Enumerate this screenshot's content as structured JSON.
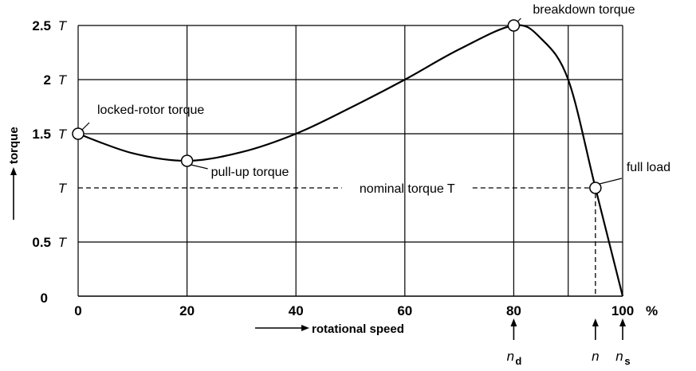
{
  "chart_data": {
    "type": "line",
    "series": [
      {
        "x": [
          0,
          10,
          20,
          30,
          40,
          50,
          60,
          70,
          80,
          85,
          90,
          95,
          100
        ],
        "y": [
          1.5,
          1.32,
          1.25,
          1.33,
          1.5,
          1.74,
          2.0,
          2.28,
          2.5,
          2.38,
          2.0,
          1.0,
          0.0
        ]
      }
    ],
    "xlim": [
      0,
      100
    ],
    "ylim": [
      0,
      2.5
    ],
    "x_ticks": [
      {
        "value": 0,
        "label": "0"
      },
      {
        "value": 20,
        "label": "20"
      },
      {
        "value": 40,
        "label": "40"
      },
      {
        "value": 60,
        "label": "60"
      },
      {
        "value": 80,
        "label": "80"
      },
      {
        "value": 100,
        "label": "100"
      }
    ],
    "x_unit": "%",
    "y_ticks": [
      {
        "value": 0,
        "num": "0",
        "sym": ""
      },
      {
        "value": 0.5,
        "num": "0.5",
        "sym": "T"
      },
      {
        "value": 1,
        "num": "",
        "sym": "T"
      },
      {
        "value": 1.5,
        "num": "1.5",
        "sym": "T"
      },
      {
        "value": 2,
        "num": "2",
        "sym": "T"
      },
      {
        "value": 2.5,
        "num": "2.5",
        "sym": "T"
      }
    ],
    "xlabel": "rotational speed",
    "ylabel": "torque",
    "grid": true,
    "nominal_line": {
      "y": 1.0,
      "label": "nominal torque T"
    },
    "markers": [
      {
        "x": 0,
        "y": 1.5,
        "label": "locked-rotor torque"
      },
      {
        "x": 20,
        "y": 1.25,
        "label": "pull-up torque"
      },
      {
        "x": 80,
        "y": 2.5,
        "label": "breakdown torque"
      },
      {
        "x": 95,
        "y": 1.0,
        "label": "full load"
      }
    ],
    "speed_markers": [
      {
        "x": 80,
        "symbol": "n",
        "sub": "d"
      },
      {
        "x": 95,
        "symbol": "n",
        "sub": ""
      },
      {
        "x": 100,
        "symbol": "n",
        "sub": "s"
      }
    ],
    "extra_vline": 90
  }
}
